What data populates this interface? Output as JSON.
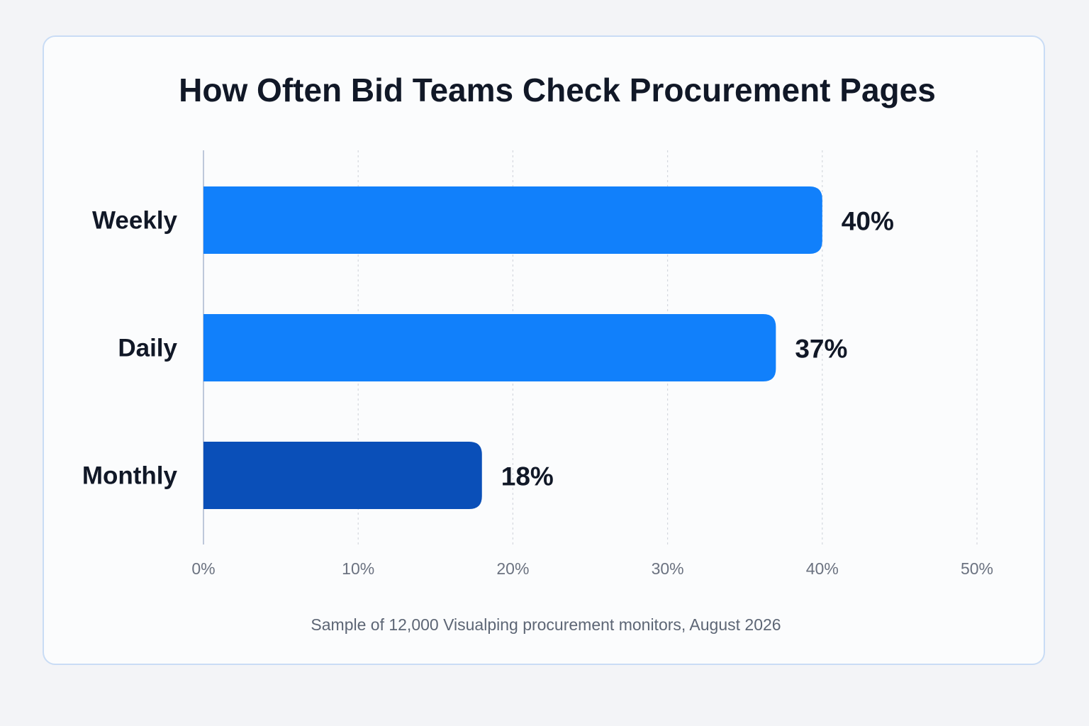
{
  "chart_data": {
    "type": "bar",
    "orientation": "horizontal",
    "title": "How Often Bid Teams Check Procurement Pages",
    "caption": "Sample of 12,000 Visualping procurement monitors, August 2026",
    "xlabel": "",
    "ylabel": "",
    "categories": [
      "Weekly",
      "Daily",
      "Monthly"
    ],
    "values": [
      40,
      37,
      18
    ],
    "value_labels": [
      "40%",
      "37%",
      "18%"
    ],
    "xlim": [
      0,
      50
    ],
    "xticks": [
      0,
      10,
      20,
      30,
      40,
      50
    ],
    "xtick_labels": [
      "0%",
      "10%",
      "20%",
      "30%",
      "40%",
      "50%"
    ],
    "grid": "vertical dashed",
    "colors": [
      "#1180fb",
      "#1180fb",
      "#0a4fb8"
    ]
  },
  "colors": {
    "card_border": "#c9dcf5",
    "title_text": "#111827",
    "tick_text": "#6b7280",
    "grid": "#d4d8de",
    "axis": "#a9b7cf"
  }
}
